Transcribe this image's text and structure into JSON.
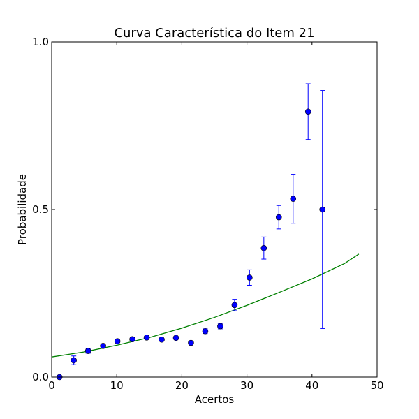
{
  "chart_data": {
    "type": "scatter",
    "title": "Curva Característica do Item 21",
    "xlabel": "Acertos",
    "ylabel": "Probabilidade",
    "xlim": [
      0,
      50
    ],
    "ylim": [
      0,
      1
    ],
    "xticks": [
      0,
      10,
      20,
      30,
      40,
      50
    ],
    "xtick_labels": [
      "0",
      "10",
      "20",
      "30",
      "40",
      "50"
    ],
    "yticks": [
      0,
      0.5,
      1
    ],
    "ytick_labels": [
      "0.0",
      "0.5",
      "1.0"
    ],
    "grid": false,
    "legend": "none",
    "colors": {
      "points": "#0000ff",
      "curve": "#008000"
    },
    "points": [
      {
        "x": 1.2,
        "y": 0.0,
        "err": 0.0
      },
      {
        "x": 3.4,
        "y": 0.05,
        "err": 0.013
      },
      {
        "x": 5.6,
        "y": 0.078,
        "err": 0.007
      },
      {
        "x": 7.9,
        "y": 0.093,
        "err": 0.005
      },
      {
        "x": 10.1,
        "y": 0.107,
        "err": 0.005
      },
      {
        "x": 12.4,
        "y": 0.113,
        "err": 0.004
      },
      {
        "x": 14.6,
        "y": 0.118,
        "err": 0.004
      },
      {
        "x": 16.9,
        "y": 0.112,
        "err": 0.004
      },
      {
        "x": 19.1,
        "y": 0.117,
        "err": 0.004
      },
      {
        "x": 21.4,
        "y": 0.102,
        "err": 0.005
      },
      {
        "x": 23.6,
        "y": 0.137,
        "err": 0.007
      },
      {
        "x": 25.9,
        "y": 0.152,
        "err": 0.008
      },
      {
        "x": 28.1,
        "y": 0.215,
        "err": 0.017
      },
      {
        "x": 30.4,
        "y": 0.297,
        "err": 0.023
      },
      {
        "x": 32.6,
        "y": 0.385,
        "err": 0.033
      },
      {
        "x": 34.9,
        "y": 0.477,
        "err": 0.035
      },
      {
        "x": 37.1,
        "y": 0.532,
        "err": 0.073
      },
      {
        "x": 39.4,
        "y": 0.792,
        "err": 0.083
      },
      {
        "x": 41.6,
        "y": 0.5,
        "err": 0.355
      }
    ],
    "curve": {
      "x": [
        0,
        5,
        10,
        15,
        20,
        25,
        30,
        35,
        40,
        45,
        47.2
      ],
      "y": [
        0.06,
        0.075,
        0.095,
        0.118,
        0.146,
        0.178,
        0.214,
        0.253,
        0.293,
        0.339,
        0.367
      ]
    }
  }
}
